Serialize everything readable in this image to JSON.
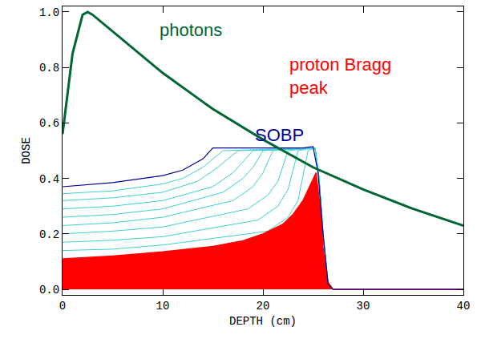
{
  "chart_data": {
    "type": "line",
    "x_label": "DEPTH (cm)",
    "y_label": "DOSE",
    "xlim": [
      0,
      40
    ],
    "xticks": [
      0,
      10,
      20,
      30,
      40
    ],
    "ylim": [
      -0.02,
      1.02
    ],
    "yticks": [
      {
        "value": 0,
        "label": "0.0"
      },
      0.2,
      0.4,
      0.6,
      0.8,
      {
        "value": 1,
        "label": "1.0"
      }
    ],
    "grid": false,
    "series": [
      {
        "color": "#40d0d0",
        "x": [
          0,
          5,
          10,
          20.5,
          22.5,
          23.5,
          24.5,
          25.2,
          25.6,
          26,
          26.5,
          27
        ],
        "values": [
          0.14,
          0.145,
          0.16,
          0.21,
          0.26,
          0.32,
          0.5,
          0.51,
          0.4,
          0.2,
          0.02,
          0
        ]
      },
      {
        "color": "#40d0d0",
        "x": [
          0,
          5,
          10,
          19.5,
          21.5,
          22.5,
          23.5,
          25.2,
          25.6,
          26,
          26.5,
          27
        ],
        "values": [
          0.17,
          0.177,
          0.19,
          0.25,
          0.3,
          0.36,
          0.5,
          0.51,
          0.4,
          0.2,
          0.02,
          0
        ]
      },
      {
        "color": "#40d0d0",
        "x": [
          0,
          5,
          10,
          18.5,
          20.5,
          21.5,
          22.5,
          25.2,
          25.6,
          26,
          26.5,
          27
        ],
        "values": [
          0.2,
          0.21,
          0.225,
          0.29,
          0.34,
          0.39,
          0.5,
          0.51,
          0.4,
          0.2,
          0.02,
          0
        ]
      },
      {
        "color": "#40d0d0",
        "x": [
          0,
          5,
          10,
          17,
          19,
          20,
          21,
          25.2,
          25.6,
          26,
          26.5,
          27
        ],
        "values": [
          0.23,
          0.24,
          0.26,
          0.32,
          0.37,
          0.42,
          0.5,
          0.51,
          0.4,
          0.2,
          0.02,
          0
        ]
      },
      {
        "color": "#40d0d0",
        "x": [
          0,
          5,
          10,
          16,
          18,
          19,
          20,
          25.2,
          25.6,
          26,
          26.5,
          27
        ],
        "values": [
          0.26,
          0.27,
          0.29,
          0.35,
          0.4,
          0.44,
          0.5,
          0.51,
          0.4,
          0.2,
          0.02,
          0
        ]
      },
      {
        "color": "#40d0d0",
        "x": [
          0,
          5,
          10,
          15,
          17,
          18,
          19,
          25.2,
          25.6,
          26,
          26.5,
          27
        ],
        "values": [
          0.29,
          0.3,
          0.32,
          0.37,
          0.42,
          0.46,
          0.5,
          0.51,
          0.4,
          0.2,
          0.02,
          0
        ]
      },
      {
        "color": "#40d0d0",
        "x": [
          0,
          5,
          10,
          13.5,
          15.5,
          16.5,
          17.5,
          25.2,
          25.6,
          26,
          26.5,
          27
        ],
        "values": [
          0.32,
          0.33,
          0.35,
          0.39,
          0.44,
          0.47,
          0.5,
          0.51,
          0.4,
          0.2,
          0.02,
          0
        ]
      },
      {
        "color": "#40d0d0",
        "x": [
          0,
          5,
          10,
          12,
          14,
          15,
          16,
          25.2,
          25.6,
          26,
          26.5,
          27
        ],
        "values": [
          0.345,
          0.355,
          0.38,
          0.4,
          0.44,
          0.47,
          0.5,
          0.51,
          0.4,
          0.2,
          0.02,
          0
        ]
      },
      {
        "type": "area",
        "color": "#ff0000",
        "x": [
          0,
          5,
          10,
          15,
          18,
          20,
          22,
          23,
          24,
          24.8,
          25.3,
          25.7,
          26,
          26.4,
          27,
          40
        ],
        "values": [
          0.11,
          0.12,
          0.135,
          0.155,
          0.175,
          0.2,
          0.235,
          0.27,
          0.32,
          0.38,
          0.42,
          0.3,
          0.15,
          0.03,
          0,
          0
        ]
      },
      {
        "color": "#000099",
        "x": [
          0,
          5,
          10,
          12,
          14,
          15,
          20,
          24,
          25,
          25.5,
          26,
          26.5,
          27,
          40
        ],
        "values": [
          0.37,
          0.385,
          0.41,
          0.43,
          0.47,
          0.51,
          0.51,
          0.51,
          0.515,
          0.42,
          0.2,
          0.02,
          0,
          0
        ]
      },
      {
        "color": "#006633",
        "x": [
          0,
          1,
          2,
          2.5,
          3,
          5,
          8,
          10,
          15,
          20,
          25,
          30,
          35,
          40
        ],
        "values": [
          0.56,
          0.85,
          0.99,
          1.0,
          0.99,
          0.93,
          0.84,
          0.78,
          0.65,
          0.54,
          0.44,
          0.36,
          0.29,
          0.23
        ]
      }
    ],
    "annotations": [
      {
        "text": "photons",
        "x": 9.5,
        "y": 0.935,
        "color": "#006633"
      },
      {
        "text": "proton Bragg\npeak",
        "x": 22.5,
        "y": 0.77,
        "color": "#ff0000"
      },
      {
        "text": "SOBP",
        "x": 19,
        "y": 0.555,
        "color": "#000099"
      }
    ]
  }
}
